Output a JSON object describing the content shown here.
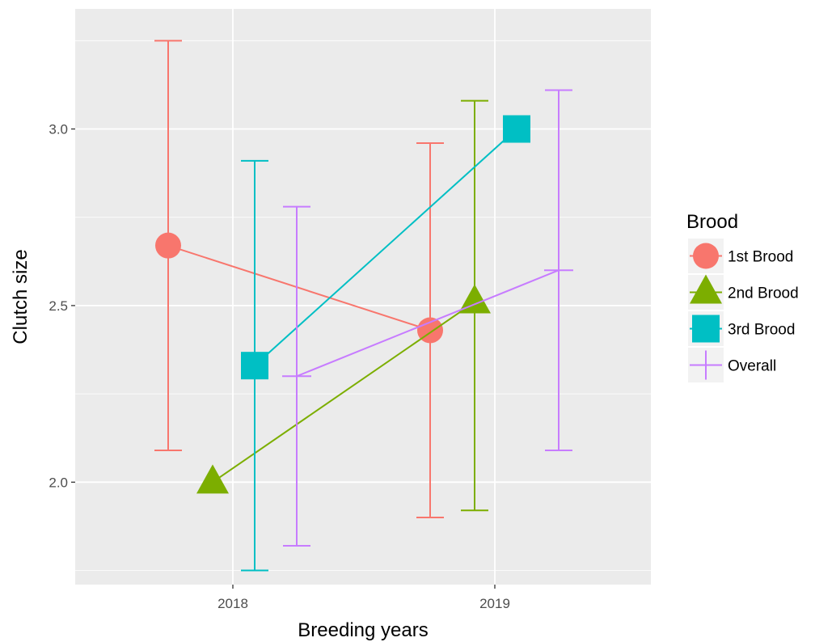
{
  "chart_data": {
    "type": "line",
    "xlabel": "Breeding years",
    "ylabel": "Clutch size",
    "categories": [
      "2018",
      "2019"
    ],
    "y_ticks": [
      "2.0",
      "2.5",
      "3.0"
    ],
    "y_tick_values": [
      2.0,
      2.5,
      3.0
    ],
    "ylim": [
      1.71,
      3.34
    ],
    "grid": true,
    "legend": {
      "title": "Brood",
      "position": "right"
    },
    "series": [
      {
        "name": "1st Brood",
        "color": "#F8766D",
        "shape": "circle",
        "values": [
          2.67,
          2.43
        ],
        "lower": [
          2.09,
          1.9
        ],
        "upper": [
          3.25,
          2.96
        ]
      },
      {
        "name": "2nd Brood",
        "color": "#7CAE00",
        "shape": "triangle",
        "values": [
          2.0,
          2.51
        ],
        "lower": [
          2.0,
          1.92
        ],
        "upper": [
          2.0,
          3.08
        ]
      },
      {
        "name": "3rd Brood",
        "color": "#00BFC4",
        "shape": "square",
        "values": [
          2.33,
          3.0
        ],
        "lower": [
          1.75,
          3.0
        ],
        "upper": [
          2.91,
          3.0
        ]
      },
      {
        "name": "Overall",
        "color": "#C77CFF",
        "shape": "plus",
        "values": [
          2.3,
          2.6
        ],
        "lower": [
          1.82,
          2.09
        ],
        "upper": [
          2.78,
          3.11
        ]
      }
    ]
  }
}
